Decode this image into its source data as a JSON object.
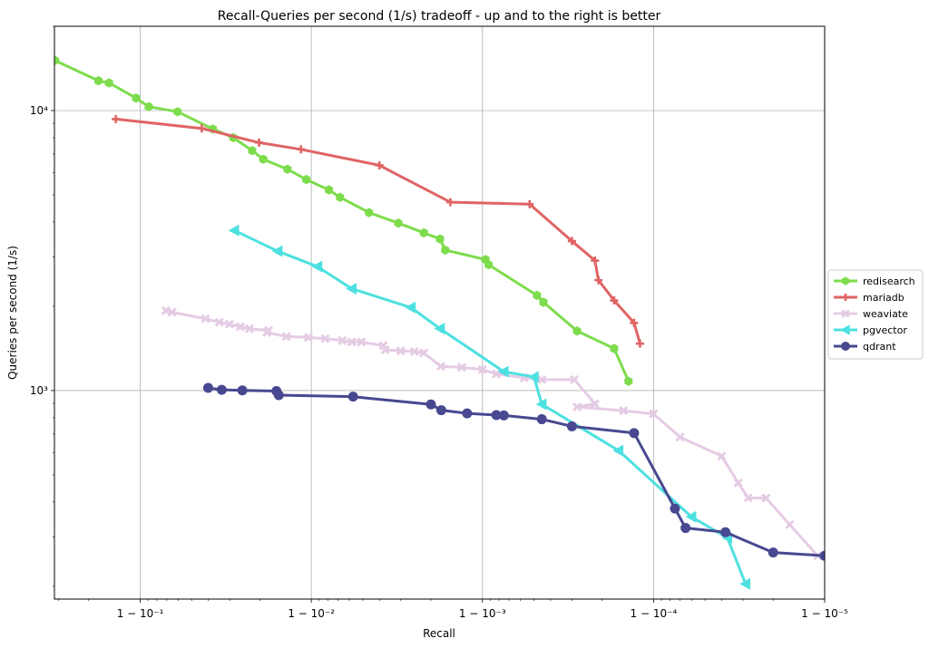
{
  "chart_data": {
    "type": "line",
    "title": "Recall-Queries per second (1/s) tradeoff - up and to the right is better",
    "xlabel": "Recall",
    "ylabel": "Queries per second (1/s)",
    "x_scale": "log(1 - recall), reversed",
    "y_scale": "log",
    "xlim": [
      0.6827,
      0.99999
    ],
    "ylim": [
      180,
      20000
    ],
    "grid": true,
    "legend_position": "right",
    "x_ticks": [
      {
        "value": 0.9,
        "label": "1 − 10⁻¹"
      },
      {
        "value": 0.99,
        "label": "1 − 10⁻²"
      },
      {
        "value": 0.999,
        "label": "1 − 10⁻³"
      },
      {
        "value": 0.9999,
        "label": "1 − 10⁻⁴"
      },
      {
        "value": 0.99999,
        "label": "1 − 10⁻⁵"
      }
    ],
    "y_ticks": [
      {
        "value": 1000,
        "label": "10³"
      },
      {
        "value": 10000,
        "label": "10⁴"
      }
    ],
    "series": [
      {
        "name": "redisearch",
        "color": "#7ddc4c",
        "marker": "hexagon",
        "points": [
          [
            0.6852,
            15103
          ],
          [
            0.8247,
            12778
          ],
          [
            0.8478,
            12556
          ],
          [
            0.8943,
            11082
          ],
          [
            0.9108,
            10323
          ],
          [
            0.9395,
            9905
          ],
          [
            0.9623,
            8595
          ],
          [
            0.9714,
            8003
          ],
          [
            0.9778,
            7195
          ],
          [
            0.9809,
            6701
          ],
          [
            0.9862,
            6173
          ],
          [
            0.9893,
            5670
          ],
          [
            0.9921,
            5209
          ],
          [
            0.9932,
            4901
          ],
          [
            0.9954,
            4319
          ],
          [
            0.9969,
            3963
          ],
          [
            0.9978,
            3659
          ],
          [
            0.99823,
            3478
          ],
          [
            0.99835,
            3175
          ],
          [
            0.99904,
            2937
          ],
          [
            0.99908,
            2815
          ],
          [
            0.99952,
            2187
          ],
          [
            0.99956,
            2067
          ],
          [
            0.99972,
            1632
          ],
          [
            0.99983,
            1414
          ],
          [
            0.99986,
            1079
          ]
        ]
      },
      {
        "name": "mariadb",
        "color": "#e06464",
        "marker": "plus",
        "points": [
          [
            0.861,
            9322
          ],
          [
            0.9563,
            8636
          ],
          [
            0.9798,
            7683
          ],
          [
            0.9885,
            7271
          ],
          [
            0.996,
            6373
          ],
          [
            0.99846,
            4707
          ],
          [
            0.99947,
            4631
          ],
          [
            0.9997,
            3418
          ],
          [
            0.99978,
            2912
          ],
          [
            0.99979,
            2479
          ],
          [
            0.99983,
            2098
          ],
          [
            0.99987,
            1744
          ],
          [
            0.99988,
            1471
          ]
        ]
      },
      {
        "name": "weaviate",
        "color": "#e5cce5",
        "marker": "x",
        "points": [
          [
            0.9292,
            1931
          ],
          [
            0.9348,
            1904
          ],
          [
            0.9585,
            1805
          ],
          [
            0.9655,
            1753
          ],
          [
            0.9699,
            1726
          ],
          [
            0.974,
            1689
          ],
          [
            0.977,
            1663
          ],
          [
            0.9822,
            1640
          ],
          [
            0.9818,
            1612
          ],
          [
            0.986,
            1560
          ],
          [
            0.9896,
            1548
          ],
          [
            0.9917,
            1533
          ],
          [
            0.9934,
            1508
          ],
          [
            0.9942,
            1491
          ],
          [
            0.9949,
            1491
          ],
          [
            0.9962,
            1447
          ],
          [
            0.9963,
            1398
          ],
          [
            0.997,
            1386
          ],
          [
            0.9975,
            1378
          ],
          [
            0.9978,
            1362
          ],
          [
            0.99825,
            1220
          ],
          [
            0.99868,
            1210
          ],
          [
            0.999,
            1188
          ],
          [
            0.99917,
            1146
          ],
          [
            0.99943,
            1110
          ],
          [
            0.99955,
            1094
          ],
          [
            0.99971,
            1094
          ],
          [
            0.99978,
            897
          ],
          [
            0.99972,
            874
          ],
          [
            0.99985,
            848
          ],
          [
            0.9999,
            825
          ],
          [
            0.99993,
            682
          ],
          [
            0.99996,
            583
          ],
          [
            0.999968,
            468
          ],
          [
            0.999972,
            414
          ],
          [
            0.999978,
            413
          ],
          [
            0.999984,
            332
          ],
          [
            0.999989,
            257
          ]
        ]
      },
      {
        "name": "pgvector",
        "color": "#4de0e0",
        "marker": "triangle-left",
        "points": [
          [
            0.9718,
            3730
          ],
          [
            0.9843,
            3146
          ],
          [
            0.9908,
            2771
          ],
          [
            0.9942,
            2310
          ],
          [
            0.99738,
            1980
          ],
          [
            0.99823,
            1664
          ],
          [
            0.99925,
            1168
          ],
          [
            0.9995,
            1119
          ],
          [
            0.99955,
            894
          ],
          [
            0.99984,
            610
          ],
          [
            0.99994,
            354
          ],
          [
            0.999963,
            298
          ],
          [
            0.999971,
            204
          ]
        ]
      },
      {
        "name": "qdrant",
        "color": "#484891",
        "marker": "circle",
        "points": [
          [
            0.9599,
            1022
          ],
          [
            0.9666,
            1006
          ],
          [
            0.9747,
            1001
          ],
          [
            0.984,
            996
          ],
          [
            0.9845,
            963
          ],
          [
            0.9943,
            951
          ],
          [
            0.998,
            892
          ],
          [
            0.99826,
            851
          ],
          [
            0.99877,
            829
          ],
          [
            0.99917,
            817
          ],
          [
            0.99925,
            815
          ],
          [
            0.99955,
            790
          ],
          [
            0.9997,
            745
          ],
          [
            0.99987,
            705
          ],
          [
            0.999925,
            379
          ],
          [
            0.999935,
            323
          ],
          [
            0.999962,
            312
          ],
          [
            0.99998,
            264
          ],
          [
            0.99999,
            257
          ]
        ]
      }
    ]
  }
}
